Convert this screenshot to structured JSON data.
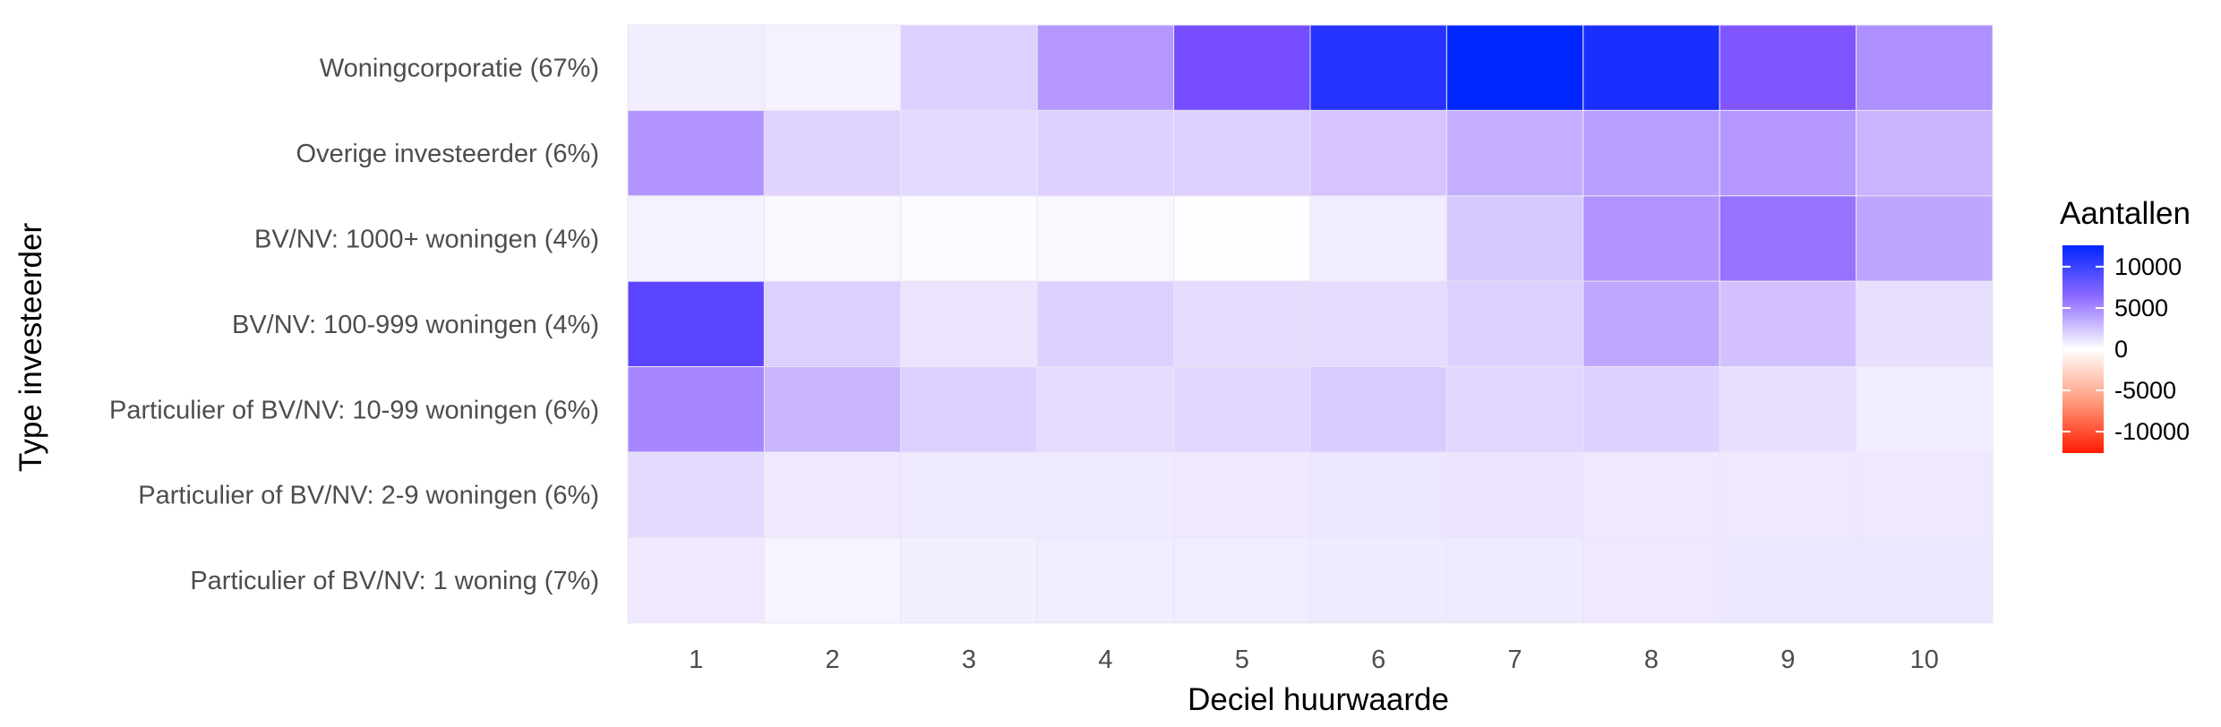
{
  "chart_data": {
    "type": "heatmap",
    "title": "",
    "xlabel": "Deciel huurwaarde",
    "ylabel": "Type investeerder",
    "x": [
      "1",
      "2",
      "3",
      "4",
      "5",
      "6",
      "7",
      "8",
      "9",
      "10"
    ],
    "y": [
      "Woningcorporatie (67%)",
      "Overige investeerder (6%)",
      "BV/NV: 1000+ woningen (4%)",
      "BV/NV: 100-999 woningen (4%)",
      "Particulier of BV/NV: 10-99 woningen (6%)",
      "Particulier of BV/NV: 2-9 woningen (6%)",
      "Particulier of BV/NV: 1 woning (7%)"
    ],
    "values": [
      [
        800,
        600,
        2600,
        5600,
        9500,
        12500,
        14000,
        13000,
        9000,
        6000
      ],
      [
        5800,
        2300,
        2000,
        2500,
        2600,
        3300,
        4600,
        5300,
        5600,
        4300
      ],
      [
        600,
        250,
        150,
        250,
        100,
        900,
        3000,
        5800,
        7500,
        5000
      ],
      [
        10500,
        2600,
        1300,
        2600,
        1800,
        1900,
        2600,
        4900,
        3600,
        1600
      ],
      [
        6500,
        4300,
        2600,
        1900,
        2200,
        2900,
        2200,
        2500,
        1600,
        900
      ],
      [
        2000,
        1100,
        1000,
        1000,
        1100,
        1200,
        1300,
        1100,
        1100,
        1100
      ],
      [
        1100,
        500,
        800,
        900,
        900,
        1000,
        1000,
        1100,
        1200,
        1200
      ]
    ],
    "colorbar": {
      "title": "Aantallen",
      "ticks": [
        "10000",
        "5000",
        "0",
        "-5000",
        "-10000"
      ],
      "high_color": "#0026ff",
      "mid_color": "#ffffff",
      "low_color": "#ff1a00"
    },
    "legend_position": "right",
    "grid": false
  }
}
